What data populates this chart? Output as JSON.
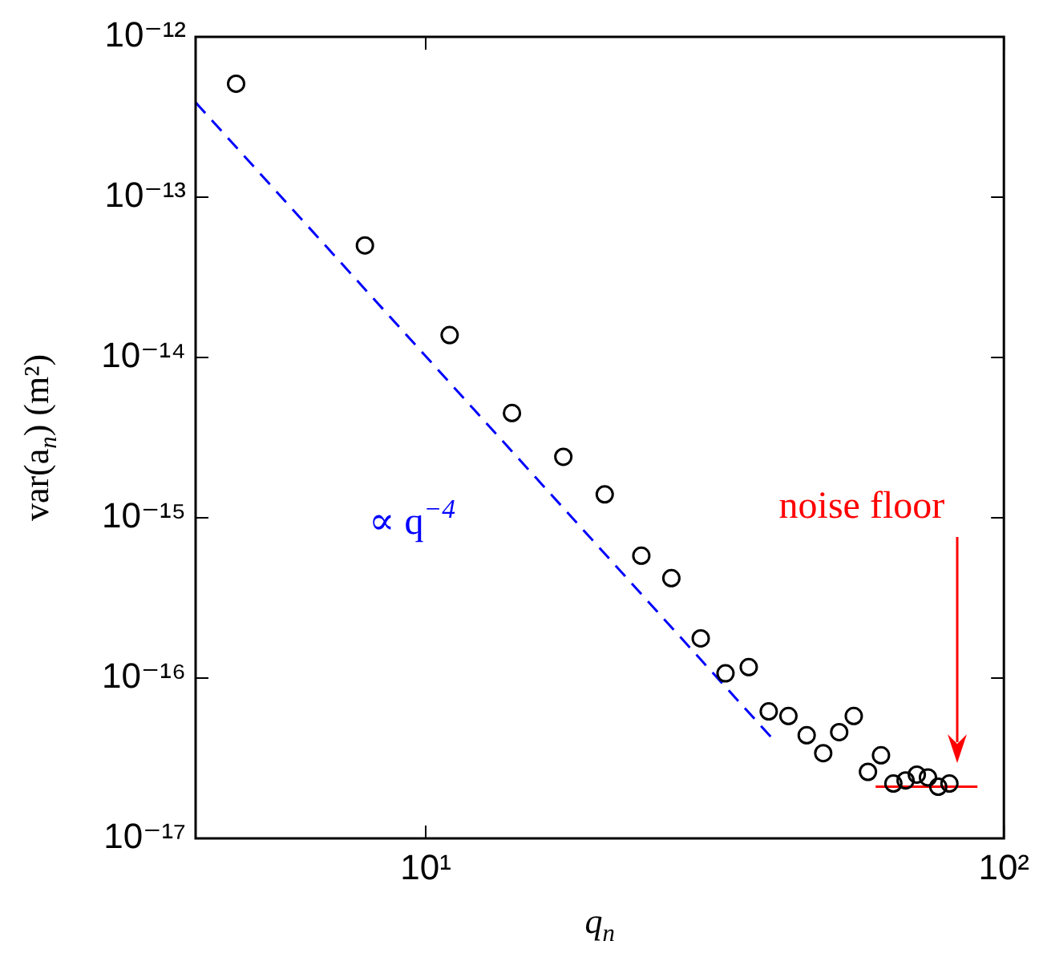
{
  "chart_data": {
    "type": "scatter",
    "xlabel": "q$_{n}$",
    "ylabel": "var(a$_{n}$) (m²)",
    "log": "xy",
    "xlim": [
      4,
      100
    ],
    "ylim": [
      1e-17,
      1e-12
    ],
    "xticks": [
      {
        "value": 10,
        "label": "10¹"
      },
      {
        "value": 100,
        "label": "10²"
      }
    ],
    "yticks": [
      {
        "value": 1e-17,
        "label": "10⁻¹⁷"
      },
      {
        "value": 1e-16,
        "label": "10⁻¹⁶"
      },
      {
        "value": 1e-15,
        "label": "10⁻¹⁵"
      },
      {
        "value": 1e-14,
        "label": "10⁻¹⁴"
      },
      {
        "value": 1e-13,
        "label": "10⁻¹³"
      },
      {
        "value": 1e-12,
        "label": "10⁻¹²"
      }
    ],
    "grid": false,
    "legend": false,
    "annotations": [
      "∝ q$^{−4}$",
      "noise floor"
    ],
    "series": [
      {
        "type": "scatter",
        "color": "#000000",
        "marker": "circle",
        "x": [
          4.7,
          7.85,
          11,
          14.1,
          17.3,
          20.4,
          23.6,
          26.6,
          29.9,
          33,
          36.2,
          39.2,
          42.4,
          45.6,
          48.7,
          51.9,
          55,
          58.2,
          61.3,
          64.4,
          67.6,
          70.7,
          73.9,
          77,
          80.5
        ],
        "values": [
          5.1e-13,
          5e-14,
          1.38e-14,
          4.5e-15,
          2.4e-15,
          1.4e-15,
          5.8e-16,
          4.2e-16,
          1.77e-16,
          1.07e-16,
          1.17e-16,
          6.2e-17,
          5.8e-17,
          4.4e-17,
          3.4e-17,
          4.6e-17,
          5.8e-17,
          2.6e-17,
          3.3e-17,
          2.2e-17,
          2.3e-17,
          2.5e-17,
          2.4e-17,
          2.1e-17,
          2.2e-17
        ]
      },
      {
        "type": "line",
        "color": "#0000ff",
        "line_style": "dashed",
        "marker": "none",
        "x": [
          4,
          40
        ],
        "values": [
          3.9e-13,
          4.1e-17
        ]
      },
      {
        "type": "line",
        "color": "#ff0000",
        "line_style": "solid",
        "marker": "none",
        "x": [
          60,
          90
        ],
        "values": [
          2.1e-17,
          2.1e-17
        ]
      }
    ]
  }
}
